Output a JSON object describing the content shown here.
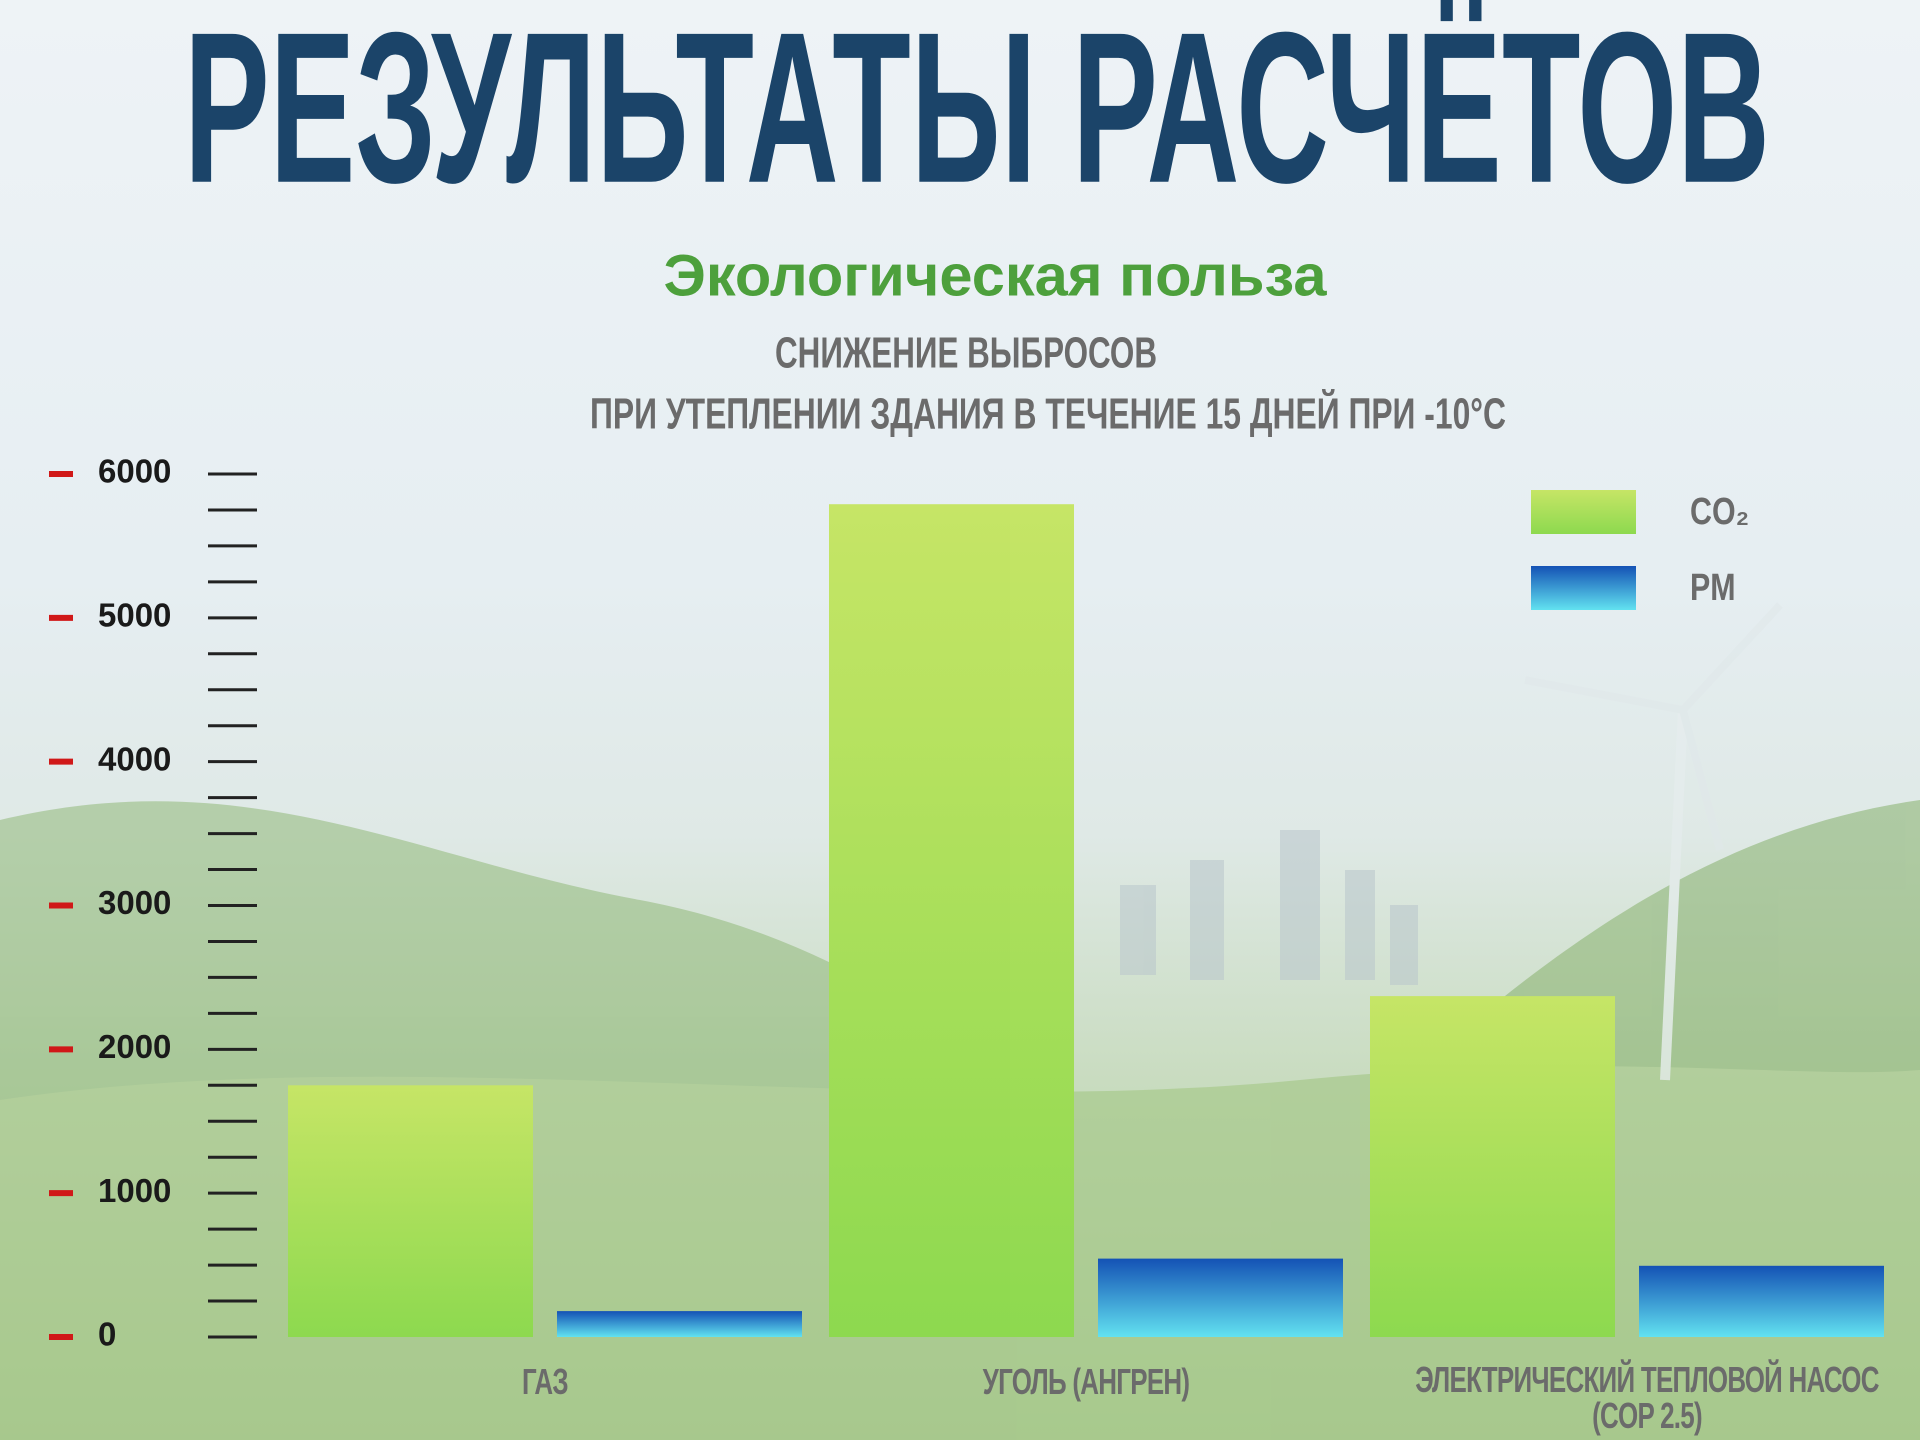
{
  "chart_data": {
    "type": "bar",
    "title": "РЕЗУЛЬТАТЫ РАСЧЁТОВ",
    "subtitle": "Экологическая польза",
    "chart_title": [
      "СНИЖЕНИЕ ВЫБРОСОВ",
      "ПРИ УТЕПЛЕНИИ ЗДАНИЯ В ТЕЧЕНИЕ 15 ДНЕЙ ПРИ -10°С"
    ],
    "categories": [
      "ГАЗ",
      "УГОЛЬ (АНГРЕН)",
      "ЭЛЕКТРИЧЕСКИЙ ТЕПЛОВОЙ НАСОС\n(COP 2.5)"
    ],
    "series": [
      {
        "name": "CO₂",
        "color": [
          "#c6e566",
          "#8dd94f"
        ],
        "values": [
          1750,
          5790,
          2370
        ]
      },
      {
        "name": "PM",
        "color": [
          "#1452b5",
          "#62e2f0"
        ],
        "values": [
          180,
          545,
          495
        ]
      }
    ],
    "ylim": [
      0,
      6000
    ],
    "yticks": [
      0,
      1000,
      2000,
      3000,
      4000,
      5000,
      6000
    ],
    "minor_yticks": [
      250,
      500,
      750,
      1250,
      1500,
      1750,
      2250,
      2500,
      2750,
      3250,
      3500,
      3750,
      4250,
      4500,
      4750,
      5250,
      5500,
      5750
    ],
    "legend": "top-right"
  }
}
